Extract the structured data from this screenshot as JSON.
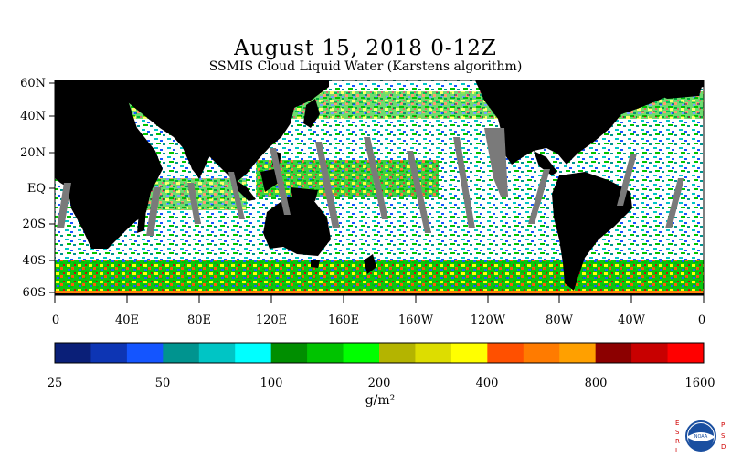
{
  "title": "August 15, 2018 0-12Z",
  "subtitle": "SSMIS Cloud Liquid Water (Karstens algorithm)",
  "lat_labels": [
    "60N",
    "40N",
    "20N",
    "EQ",
    "20S",
    "40S",
    "60S"
  ],
  "lon_labels": [
    "0",
    "40E",
    "80E",
    "120E",
    "160E",
    "160W",
    "120W",
    "80W",
    "40W",
    "0"
  ],
  "colorbar": {
    "colors": [
      "#0a1f78",
      "#0d35b4",
      "#1455ff",
      "#00948f",
      "#00c5c5",
      "#00ffff",
      "#008e00",
      "#00c300",
      "#00ff00",
      "#b4b400",
      "#dddd00",
      "#ffff00",
      "#ff5000",
      "#ff7b00",
      "#ffa000",
      "#8c0000",
      "#c80000",
      "#ff0000"
    ],
    "tick_labels": [
      "25",
      "50",
      "100",
      "200",
      "400",
      "800",
      "1600"
    ],
    "units": "g/m²"
  },
  "logo": {
    "left_letters": "ESRL",
    "right_letters": "PSD",
    "center_text": "NOAA"
  }
}
